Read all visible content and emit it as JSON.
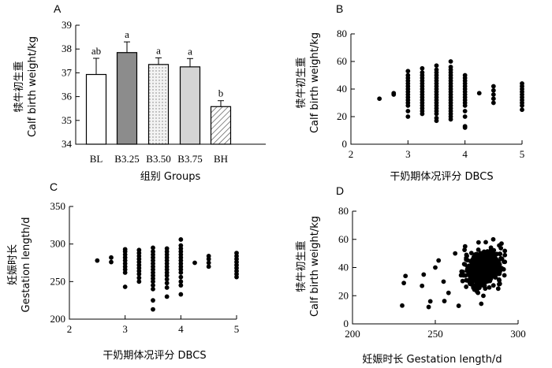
{
  "chart_data": [
    {
      "panel": "A",
      "type": "bar",
      "categories": [
        "BL",
        "B3.25",
        "B3.50",
        "B3.75",
        "BH"
      ],
      "values": [
        36.93,
        37.85,
        37.35,
        37.25,
        35.58
      ],
      "errors": [
        0.68,
        0.45,
        0.28,
        0.35,
        0.25
      ],
      "significance": [
        "ab",
        "a",
        "a",
        "a",
        "b"
      ],
      "bar_styles": [
        "white",
        "dark-gray",
        "dotted",
        "light-gray",
        "hatched"
      ],
      "colors": [
        "#ffffff",
        "#8c8c8c",
        "#eeeeee",
        "#d4d4d4",
        "#ffffff"
      ],
      "ylim": [
        34,
        39
      ],
      "yticks": [
        34,
        35,
        36,
        37,
        38,
        39
      ],
      "xlabel": "组别 Groups",
      "ylabel_cn": "犊牛初生重",
      "ylabel_en": "Calf birth weight/kg"
    },
    {
      "panel": "B",
      "type": "scatter",
      "xlim": [
        2,
        5
      ],
      "ylim": [
        0,
        80
      ],
      "xticks": [
        2,
        3,
        4,
        5
      ],
      "yticks": [
        0,
        20,
        40,
        60,
        80
      ],
      "xlabel": "干奶期体况评分  DBCS",
      "ylabel_cn": "犊牛初生重",
      "ylabel_en": "Calf birth weight/kg",
      "columns": [
        {
          "x": 2.5,
          "ys": [
            33
          ]
        },
        {
          "x": 2.75,
          "ys": [
            36,
            37
          ]
        },
        {
          "x": 3.0,
          "ys": [
            20,
            24,
            28,
            30,
            32,
            34,
            36,
            38,
            40,
            42,
            44,
            46,
            48,
            50,
            53
          ]
        },
        {
          "x": 3.25,
          "ys": [
            22,
            24,
            26,
            28,
            30,
            32,
            34,
            36,
            38,
            40,
            42,
            44,
            46,
            48,
            50,
            52,
            55
          ]
        },
        {
          "x": 3.5,
          "ys": [
            17,
            19,
            22,
            24,
            26,
            28,
            30,
            32,
            34,
            36,
            38,
            40,
            42,
            44,
            46,
            48,
            50,
            52,
            54,
            57
          ]
        },
        {
          "x": 3.75,
          "ys": [
            18,
            20,
            22,
            24,
            26,
            28,
            30,
            32,
            34,
            36,
            38,
            40,
            42,
            44,
            46,
            48,
            50,
            52,
            54,
            56,
            60
          ]
        },
        {
          "x": 4.0,
          "ys": [
            12,
            13,
            20,
            24,
            28,
            30,
            32,
            34,
            36,
            38,
            40,
            42,
            44,
            46,
            48,
            50
          ]
        },
        {
          "x": 4.25,
          "ys": [
            37
          ]
        },
        {
          "x": 4.5,
          "ys": [
            30,
            33,
            36,
            39,
            42
          ]
        },
        {
          "x": 5.0,
          "ys": [
            25,
            28,
            30,
            32,
            34,
            36,
            38,
            40,
            42,
            44
          ]
        }
      ]
    },
    {
      "panel": "C",
      "type": "scatter",
      "xlim": [
        2,
        5
      ],
      "ylim": [
        200,
        350
      ],
      "xticks": [
        2,
        3,
        4,
        5
      ],
      "yticks": [
        200,
        250,
        300,
        350
      ],
      "xlabel": "干奶期体况评分  DBCS",
      "ylabel_cn": "妊娠时长",
      "ylabel_en": "Gestation length/d",
      "columns": [
        {
          "x": 2.5,
          "ys": [
            278
          ]
        },
        {
          "x": 2.75,
          "ys": [
            276,
            282
          ]
        },
        {
          "x": 3.0,
          "ys": [
            243,
            262,
            266,
            270,
            274,
            278,
            282,
            286,
            290,
            293
          ]
        },
        {
          "x": 3.25,
          "ys": [
            250,
            255,
            260,
            264,
            268,
            272,
            276,
            280,
            284,
            288,
            292
          ]
        },
        {
          "x": 3.5,
          "ys": [
            213,
            225,
            240,
            245,
            250,
            254,
            258,
            262,
            266,
            270,
            274,
            278,
            282,
            286,
            290,
            295
          ]
        },
        {
          "x": 3.75,
          "ys": [
            230,
            242,
            248,
            253,
            258,
            262,
            266,
            270,
            274,
            278,
            282,
            286,
            290,
            294
          ]
        },
        {
          "x": 4.0,
          "ys": [
            233,
            245,
            250,
            256,
            262,
            266,
            270,
            274,
            278,
            282,
            286,
            290,
            294,
            298,
            306
          ]
        },
        {
          "x": 4.25,
          "ys": [
            275
          ]
        },
        {
          "x": 4.5,
          "ys": [
            270,
            275,
            280,
            284
          ]
        },
        {
          "x": 5.0,
          "ys": [
            256,
            260,
            264,
            268,
            272,
            276,
            280,
            284,
            288
          ]
        }
      ]
    },
    {
      "panel": "D",
      "type": "scatter",
      "xlim": [
        200,
        300
      ],
      "ylim": [
        0,
        80
      ],
      "xticks": [
        200,
        250,
        300
      ],
      "yticks": [
        0,
        20,
        40,
        60,
        80
      ],
      "xlabel": "妊娠时长  Gestation length/d",
      "ylabel_cn": "犊牛初生重",
      "ylabel_en": "Calf birth weight/kg",
      "cluster": {
        "x_mean": 279,
        "x_sd": 5.5,
        "y_mean": 39,
        "y_sd": 6,
        "n": 520
      },
      "outliers": [
        [
          230,
          13
        ],
        [
          231,
          29
        ],
        [
          232,
          34
        ],
        [
          242,
          27
        ],
        [
          243,
          35
        ],
        [
          246,
          12
        ],
        [
          247,
          16
        ],
        [
          250,
          40
        ],
        [
          252,
          45
        ],
        [
          255,
          30
        ],
        [
          258,
          22
        ],
        [
          262,
          50
        ],
        [
          268,
          55
        ],
        [
          285,
          60
        ],
        [
          290,
          57
        ],
        [
          288,
          25
        ]
      ]
    }
  ]
}
